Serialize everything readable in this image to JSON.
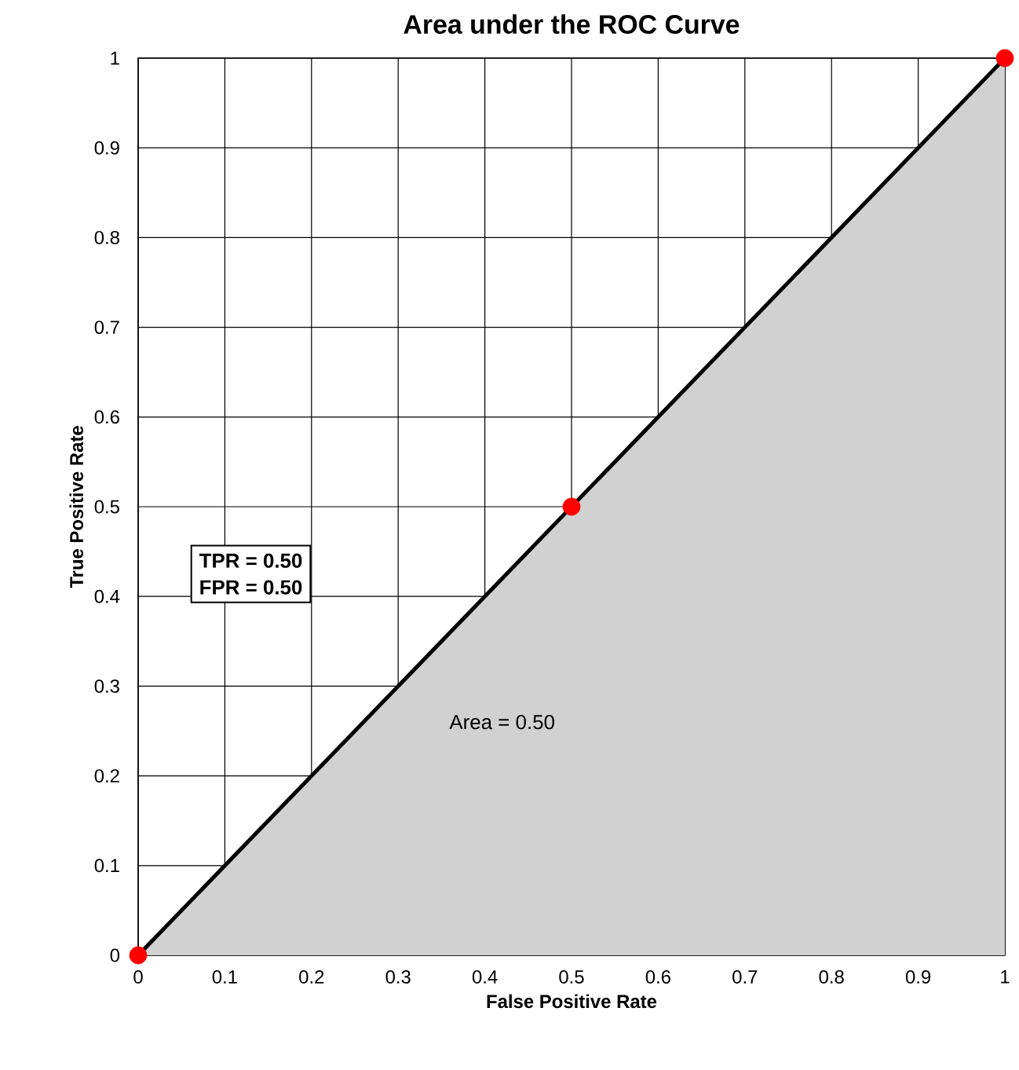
{
  "chart_data": {
    "type": "line",
    "title": "Area under the ROC Curve",
    "xlabel": "False Positive Rate",
    "ylabel": "True Positive Rate",
    "x": [
      0,
      0.5,
      1
    ],
    "series": [
      {
        "type": "area",
        "color": "#000000",
        "values": [
          0,
          0.5,
          1
        ]
      },
      {
        "type": "scatter",
        "color": "#ff0000",
        "values": [
          0,
          0.5,
          1
        ]
      }
    ],
    "xlim": [
      0,
      1
    ],
    "ylim": [
      0,
      1
    ],
    "xticks": [
      0,
      0.1,
      0.2,
      0.3,
      0.4,
      0.5,
      0.6,
      0.7,
      0.8,
      0.9,
      1
    ],
    "yticks": [
      0,
      0.1,
      0.2,
      0.3,
      0.4,
      0.5,
      0.6,
      0.7,
      0.8,
      0.9,
      1
    ],
    "grid": true,
    "annotations": [
      "TPR = 0.50",
      "FPR = 0.50",
      "Area = 0.50"
    ]
  }
}
